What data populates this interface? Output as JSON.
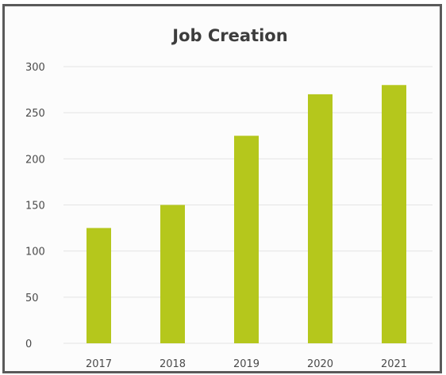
{
  "chart_data": {
    "type": "bar",
    "title": "Job Creation",
    "xlabel": "",
    "ylabel": "",
    "categories": [
      "2017",
      "2018",
      "2019",
      "2020",
      "2021"
    ],
    "values": [
      125,
      150,
      225,
      270,
      280
    ],
    "ylim": [
      0,
      300
    ],
    "yticks": [
      0,
      50,
      100,
      150,
      200,
      250,
      300
    ],
    "grid": true,
    "legend": "none",
    "bar_color": "#b5c71c"
  }
}
